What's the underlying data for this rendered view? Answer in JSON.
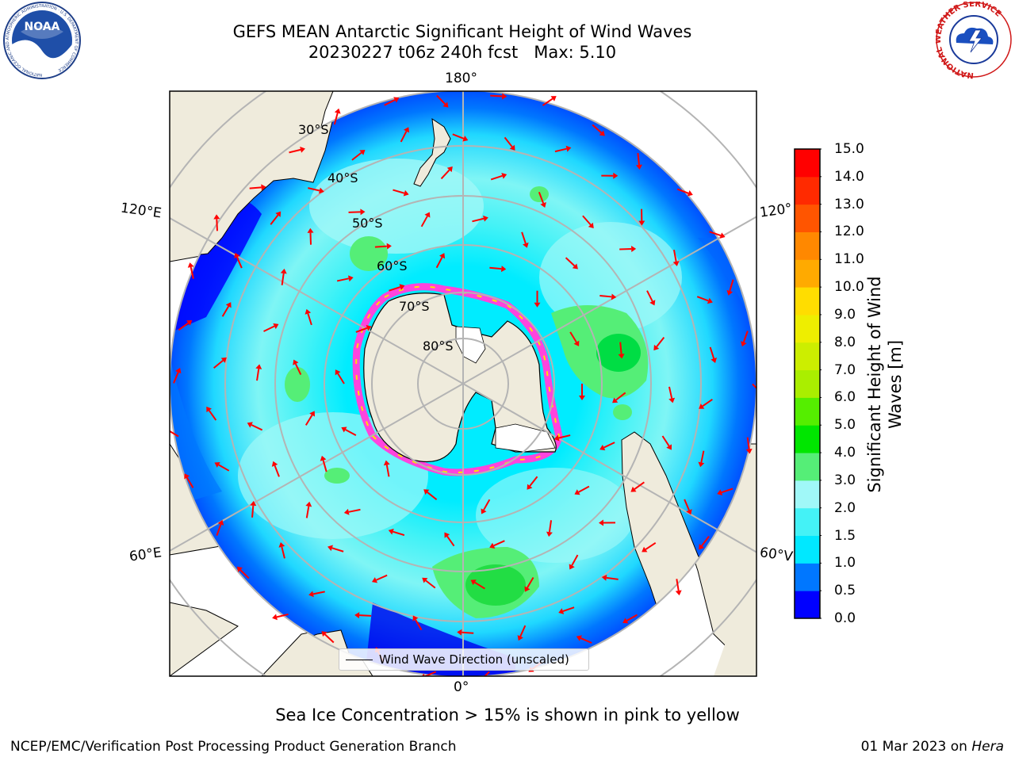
{
  "title": {
    "line1": "GEFS MEAN Antarctic Significant Height of Wind Waves",
    "line2": "20230227 t06z 240h fcst   Max: 5.10"
  },
  "logos": {
    "left": {
      "text": "NOAA",
      "ring_text": "NATIONAL OCEANIC AND ATMOSPHERIC ADMINISTRATION · U.S. DEPARTMENT OF COMMERCE"
    },
    "right": {
      "ring_text": "NATIONAL WEATHER SERVICE"
    }
  },
  "map": {
    "projection": "south-polar-stereographic",
    "lon_labels": {
      "top": "180°",
      "bottom": "0°",
      "left_upper": "120°E",
      "left_lower": "60°E",
      "right_upper": "120°",
      "right_lower": "60°V"
    },
    "lat_labels": [
      "30°S",
      "40°S",
      "50°S",
      "60°S",
      "70°S",
      "80°S"
    ],
    "colors": {
      "land": "#efebdc",
      "ice_edge": "#ff44dd",
      "arrow": "#ff0000",
      "grid": "#b4b4b4"
    }
  },
  "legend": {
    "label": "Wind Wave Direction (unscaled)"
  },
  "colorbar": {
    "label": "Significant Height of Wind Waves [m]",
    "label_line1": "Significant Height of Wind",
    "label_line2": "Waves [m]",
    "ticks": [
      "0.0",
      "0.5",
      "1.0",
      "1.5",
      "2.0",
      "3.0",
      "4.0",
      "5.0",
      "6.0",
      "7.0",
      "8.0",
      "9.0",
      "10.0",
      "11.0",
      "12.0",
      "13.0",
      "14.0",
      "15.0"
    ],
    "colors": [
      "#0000ff",
      "#0077ff",
      "#00e8ff",
      "#44f2f6",
      "#a0f8f8",
      "#55ee77",
      "#00e600",
      "#55ee00",
      "#aaee00",
      "#ccee00",
      "#eeee00",
      "#ffdd00",
      "#ffaa00",
      "#ff8800",
      "#ff5500",
      "#ff2a00",
      "#ff0000"
    ]
  },
  "footer": {
    "note": "Sea Ice Concentration > 15% is shown in pink to yellow",
    "credit_left": "NCEP/EMC/Verification Post Processing Product Generation Branch",
    "credit_right_date": "01 Mar 2023 on ",
    "credit_right_host": "Hera"
  }
}
